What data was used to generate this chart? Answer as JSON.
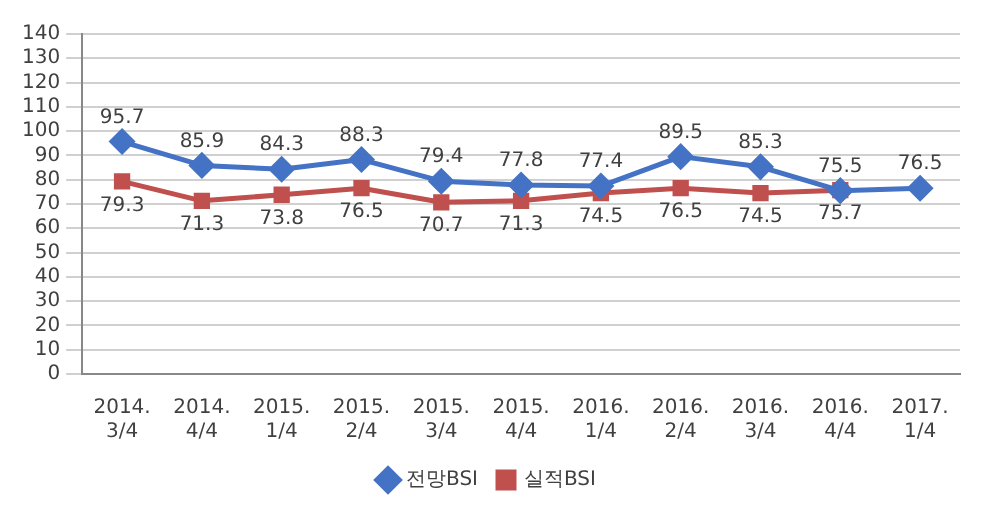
{
  "chart_data": {
    "type": "line",
    "categories": [
      "2014.\n3/4",
      "2014.\n4/4",
      "2015.\n1/4",
      "2015.\n2/4",
      "2015.\n3/4",
      "2015.\n4/4",
      "2016.\n1/4",
      "2016.\n2/4",
      "2016.\n3/4",
      "2016.\n4/4",
      "2017.\n1/4"
    ],
    "series": [
      {
        "name": "전망BSI",
        "color": "#4472c4",
        "marker": "diamond",
        "values": [
          95.7,
          85.9,
          84.3,
          88.3,
          79.4,
          77.8,
          77.4,
          89.5,
          85.3,
          75.5,
          76.5
        ]
      },
      {
        "name": "실적BSI",
        "color": "#c0504d",
        "marker": "square",
        "values": [
          79.3,
          71.3,
          73.8,
          76.5,
          70.7,
          71.3,
          74.5,
          76.5,
          74.5,
          75.7,
          null
        ]
      }
    ],
    "ylim": [
      0,
      140
    ],
    "yticks": [
      0,
      10,
      20,
      30,
      40,
      50,
      60,
      70,
      80,
      90,
      100,
      110,
      120,
      130,
      140
    ],
    "grid": "y",
    "legend": "bottom",
    "data_labels": true
  }
}
